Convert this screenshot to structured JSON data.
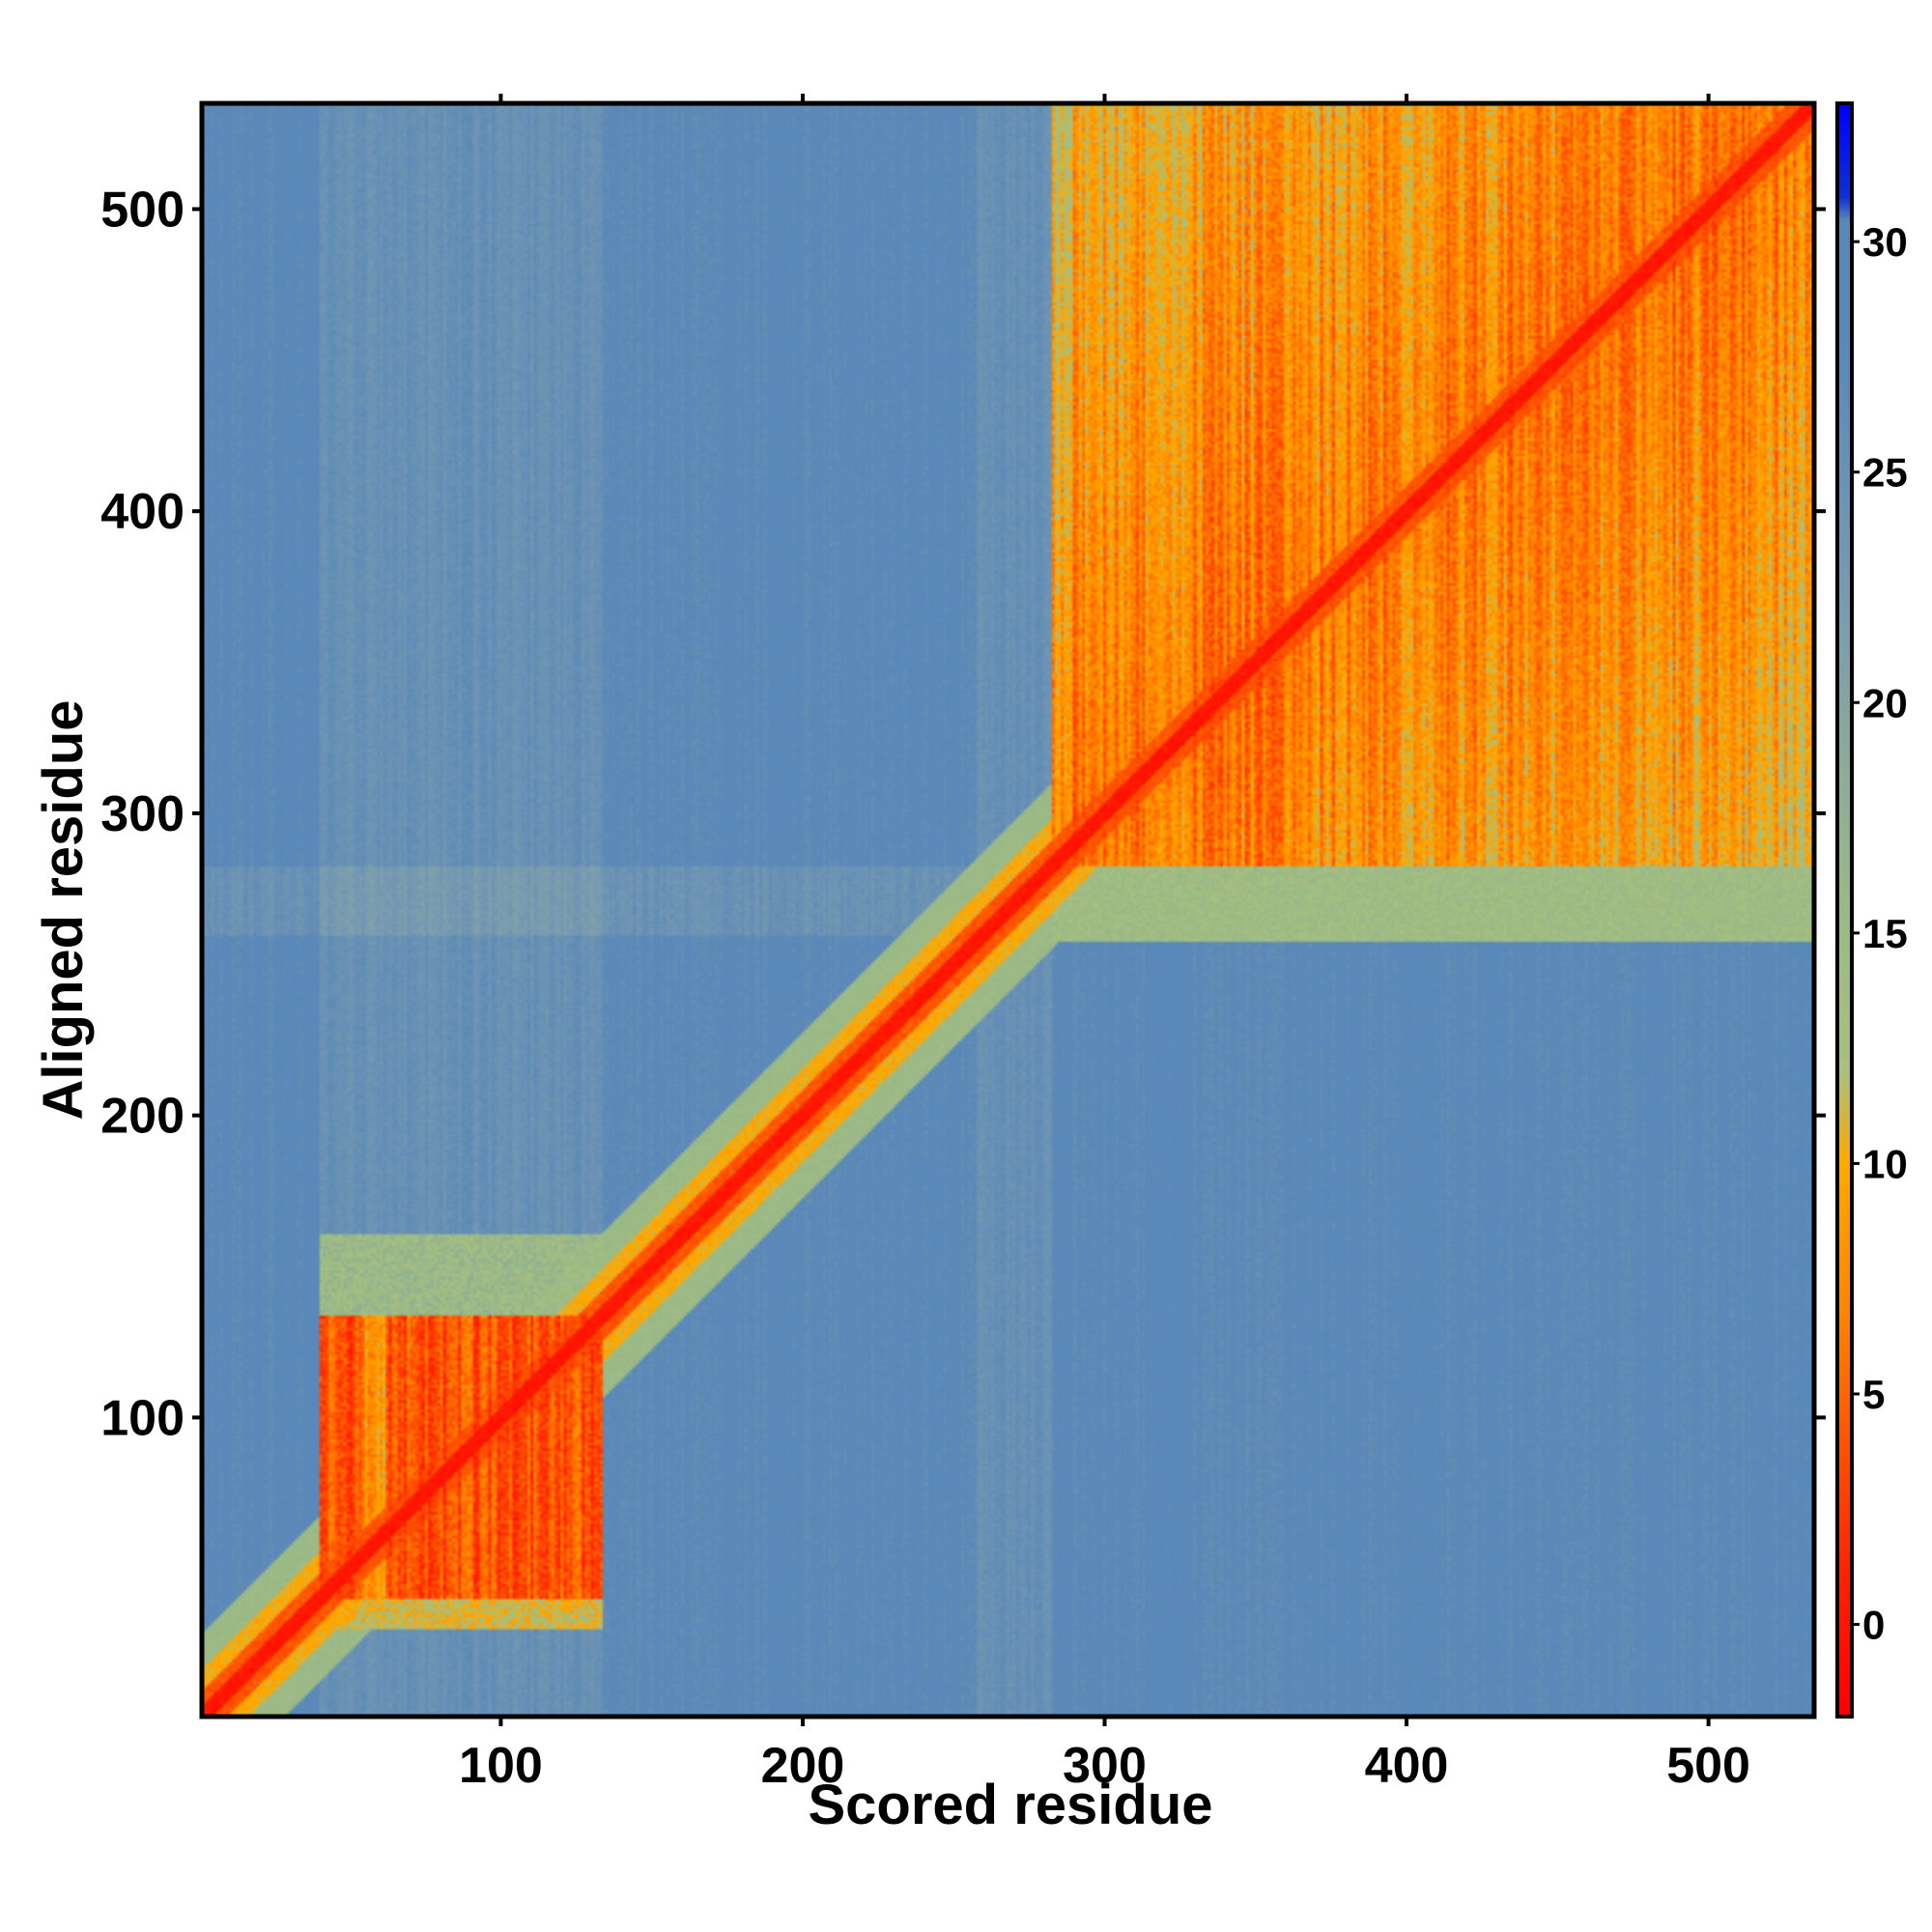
{
  "chart_data": {
    "type": "heatmap",
    "title": "",
    "xlabel": "Scored residue",
    "ylabel": "Aligned residue",
    "xlim": [
      1,
      535
    ],
    "ylim": [
      1,
      535
    ],
    "x_ticks": [
      "100",
      "200",
      "300",
      "400",
      "500"
    ],
    "x_tick_values": [
      100,
      200,
      300,
      400,
      500
    ],
    "y_ticks": [
      "100",
      "200",
      "300",
      "400",
      "500"
    ],
    "y_tick_values": [
      100,
      200,
      300,
      400,
      500
    ],
    "colorbar": {
      "ticks": [
        "0",
        "5",
        "10",
        "15",
        "20",
        "25",
        "30"
      ],
      "tick_values": [
        0,
        5,
        10,
        15,
        20,
        25,
        30
      ],
      "range": [
        -2,
        33
      ],
      "stops": [
        {
          "value": -2,
          "color": "#ff0000"
        },
        {
          "value": 1,
          "color": "#ff2200"
        },
        {
          "value": 4,
          "color": "#ff5500"
        },
        {
          "value": 7,
          "color": "#ff8800"
        },
        {
          "value": 10,
          "color": "#ffaa00"
        },
        {
          "value": 12,
          "color": "#a8c080"
        },
        {
          "value": 16,
          "color": "#98b888"
        },
        {
          "value": 22,
          "color": "#7a9cb0"
        },
        {
          "value": 28,
          "color": "#5a88b8"
        },
        {
          "value": 30.5,
          "color": "#5a88b8"
        },
        {
          "value": 31,
          "color": "#1030d0"
        },
        {
          "value": 33,
          "color": "#0000ff"
        }
      ]
    },
    "data_summary": {
      "diagonal_value": 0,
      "background_value": 28,
      "domains": [
        {
          "start": 40,
          "end": 133,
          "mean_value": 4
        },
        {
          "start": 283,
          "end": 535,
          "mean_value": 6
        }
      ],
      "interdomain_value": 27
    }
  }
}
